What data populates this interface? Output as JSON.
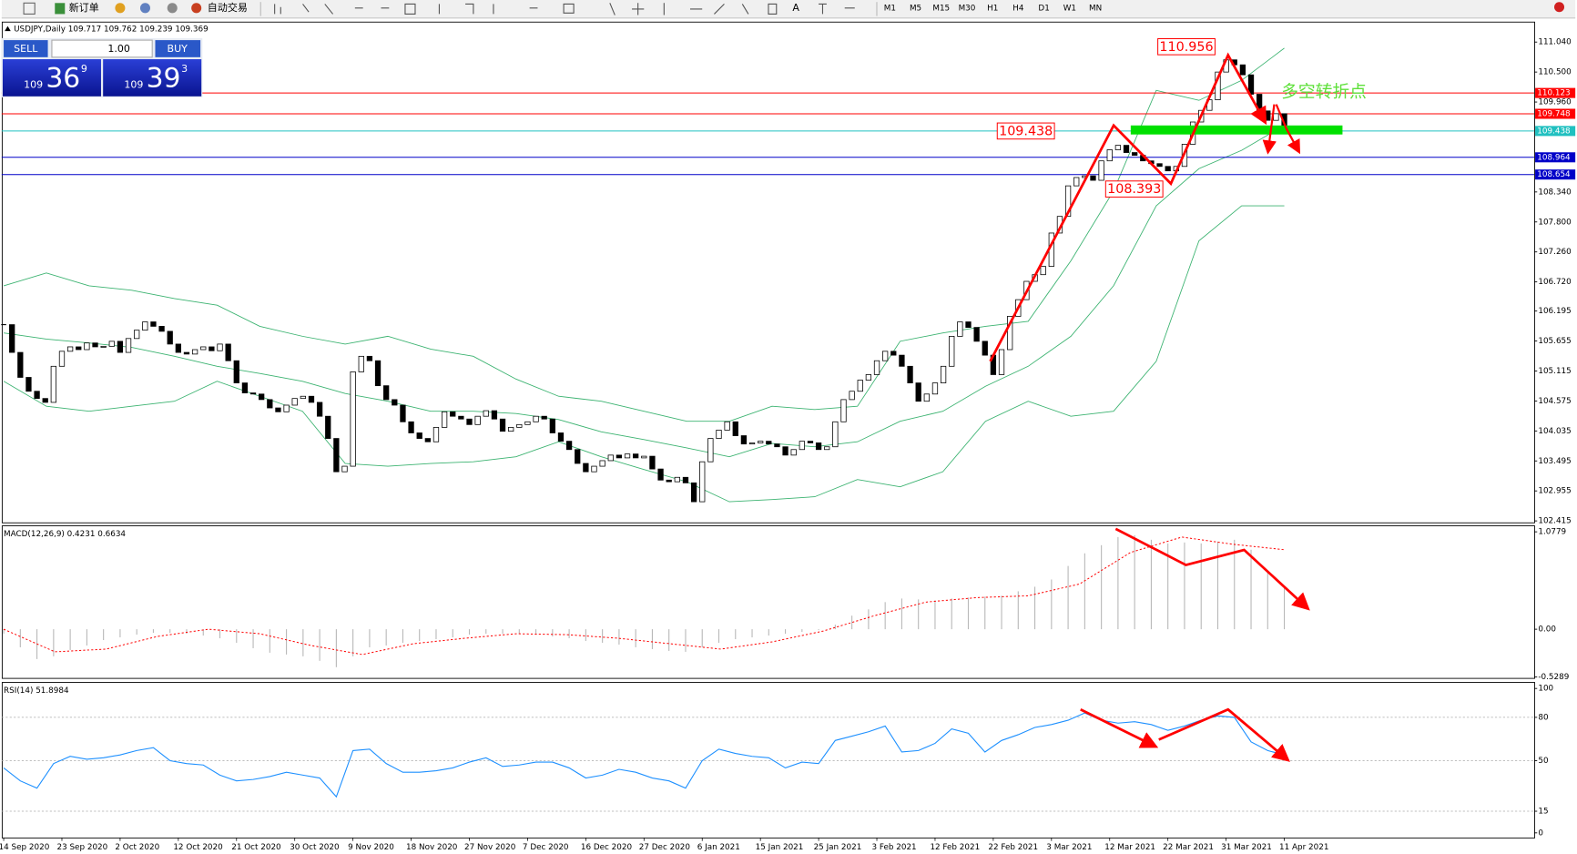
{
  "toolbar": {
    "new_order": "新订单",
    "auto_trading": "自动交易",
    "timeframes": [
      "M1",
      "M5",
      "M15",
      "M30",
      "H1",
      "H4",
      "D1",
      "W1",
      "MN"
    ]
  },
  "trade_panel": {
    "sell": "SELL",
    "buy": "BUY",
    "lots": "1.00",
    "bid": [
      "109",
      "36",
      "9"
    ],
    "ask": [
      "109",
      "39",
      "3"
    ]
  },
  "chart_data": [
    {
      "type": "candlestick",
      "title": "USDJPY,Daily 109.717 109.762 109.239 109.369",
      "x_labels": [
        "14 Sep 2020",
        "23 Sep 2020",
        "2 Oct 2020",
        "12 Oct 2020",
        "21 Oct 2020",
        "30 Oct 2020",
        "9 Nov 2020",
        "18 Nov 2020",
        "27 Nov 2020",
        "7 Dec 2020",
        "16 Dec 2020",
        "27 Dec 2020",
        "6 Jan 2021",
        "15 Jan 2021",
        "25 Jan 2021",
        "3 Feb 2021",
        "12 Feb 2021",
        "22 Feb 2021",
        "3 Mar 2021",
        "12 Mar 2021",
        "22 Mar 2021",
        "31 Mar 2021",
        "11 Apr 2021"
      ],
      "values": [
        105.95,
        105.45,
        105.0,
        104.75,
        104.62,
        104.55,
        105.2,
        105.47,
        105.55,
        105.5,
        105.62,
        105.55,
        105.56,
        105.65,
        105.45,
        105.7,
        105.85,
        106.0,
        105.92,
        105.83,
        105.6,
        105.45,
        105.42,
        105.5,
        105.55,
        105.48,
        105.6,
        105.3,
        104.9,
        104.72,
        104.7,
        104.6,
        104.45,
        104.38,
        104.5,
        104.62,
        104.66,
        104.55,
        104.3,
        103.9,
        103.3,
        103.4,
        105.1,
        105.38,
        105.3,
        104.85,
        104.6,
        104.5,
        104.2,
        104.0,
        103.9,
        103.84,
        104.1,
        104.38,
        104.3,
        104.25,
        104.15,
        104.3,
        104.4,
        104.25,
        104.03,
        104.1,
        104.15,
        104.2,
        104.3,
        104.25,
        104.0,
        103.85,
        103.7,
        103.45,
        103.3,
        103.4,
        103.5,
        103.6,
        103.55,
        103.62,
        103.55,
        103.58,
        103.35,
        103.15,
        103.12,
        103.2,
        103.1,
        102.76,
        103.48,
        103.9,
        104.05,
        104.2,
        103.95,
        103.8,
        103.82,
        103.85,
        103.8,
        103.75,
        103.6,
        103.7,
        103.85,
        103.82,
        103.7,
        103.75,
        104.2,
        104.6,
        104.75,
        104.95,
        105.05,
        105.3,
        105.47,
        105.4,
        105.2,
        104.9,
        104.57,
        104.7,
        104.9,
        105.2,
        105.74,
        106.0,
        105.9,
        105.65,
        105.4,
        105.05,
        105.5,
        106.1,
        106.4,
        106.73,
        106.85,
        107.0,
        107.6,
        107.9,
        108.45,
        108.6,
        108.63,
        108.55,
        108.9,
        109.1,
        109.18,
        109.05,
        109.0,
        108.9,
        108.85,
        108.8,
        108.72,
        108.8,
        109.2,
        109.6,
        109.81,
        110.0,
        110.5,
        110.72,
        110.63,
        110.45,
        110.1,
        109.8,
        109.63,
        109.75,
        109.54
      ],
      "bands": {
        "color": "#3cb371",
        "upper": [
          106.65,
          106.88,
          106.65,
          106.57,
          106.42,
          106.3,
          105.92,
          105.74,
          105.6,
          105.74,
          105.51,
          105.38,
          104.97,
          104.66,
          104.57,
          104.39,
          104.21,
          104.21,
          104.48,
          104.42,
          104.48,
          105.65,
          105.8,
          105.92,
          106.01,
          107.1,
          108.36,
          110.17,
          109.99,
          110.35,
          110.93
        ],
        "middle": [
          105.8,
          105.69,
          105.62,
          105.54,
          105.38,
          105.2,
          105.07,
          104.93,
          104.71,
          104.57,
          104.39,
          104.39,
          104.35,
          104.24,
          104.02,
          103.88,
          103.73,
          103.57,
          103.81,
          103.75,
          103.84,
          104.21,
          104.39,
          104.84,
          105.2,
          105.74,
          106.65,
          108.09,
          108.76,
          109.09,
          109.54
        ],
        "lower": [
          104.93,
          104.48,
          104.39,
          104.48,
          104.57,
          104.93,
          104.66,
          104.39,
          103.45,
          103.4,
          103.45,
          103.48,
          103.57,
          103.84,
          103.57,
          103.34,
          103.12,
          102.76,
          102.8,
          102.85,
          103.16,
          103.03,
          103.3,
          104.21,
          104.57,
          104.3,
          104.39,
          105.29,
          107.46,
          108.09,
          108.09
        ]
      },
      "ylim": [
        102.38,
        111.4
      ],
      "yticks": [
        {
          "value": 111.04,
          "label": "111.040"
        },
        {
          "value": 110.5,
          "label": "110.500"
        },
        {
          "value": 109.96,
          "label": "109.960"
        },
        {
          "value": 108.34,
          "label": "108.340"
        },
        {
          "value": 107.8,
          "label": "107.800"
        },
        {
          "value": 107.26,
          "label": "107.260"
        },
        {
          "value": 106.72,
          "label": "106.720"
        },
        {
          "value": 106.195,
          "label": "106.195"
        },
        {
          "value": 105.655,
          "label": "105.655"
        },
        {
          "value": 105.115,
          "label": "105.115"
        },
        {
          "value": 104.575,
          "label": "104.575"
        },
        {
          "value": 104.035,
          "label": "104.035"
        },
        {
          "value": 103.495,
          "label": "103.495"
        },
        {
          "value": 102.955,
          "label": "102.955"
        },
        {
          "value": 102.415,
          "label": "102.415"
        }
      ],
      "levels": [
        {
          "value": 110.123,
          "color": "#ff0000"
        },
        {
          "value": 109.748,
          "color": "#ff0000"
        },
        {
          "value": 109.438,
          "color": "#20c0c0"
        },
        {
          "value": 108.964,
          "color": "#0000c8"
        },
        {
          "value": 108.654,
          "color": "#0000c8"
        }
      ],
      "annotations": [
        110.956,
        109.438,
        108.393
      ],
      "note": "多空转折点"
    },
    {
      "type": "macd",
      "title": "MACD(12,26,9) 0.4231 0.6634",
      "histogram": {
        "color": "#b8b8b8",
        "values": [
          -0.05,
          -0.2,
          -0.33,
          -0.3,
          -0.23,
          -0.18,
          -0.12,
          -0.09,
          -0.06,
          -0.04,
          -0.04,
          -0.05,
          -0.07,
          -0.1,
          -0.15,
          -0.21,
          -0.26,
          -0.28,
          -0.3,
          -0.35,
          -0.42,
          -0.3,
          -0.2,
          -0.18,
          -0.15,
          -0.13,
          -0.11,
          -0.09,
          -0.06,
          -0.05,
          -0.05,
          -0.05,
          -0.06,
          -0.08,
          -0.1,
          -0.13,
          -0.15,
          -0.17,
          -0.2,
          -0.22,
          -0.24,
          -0.25,
          -0.2,
          -0.15,
          -0.11,
          -0.09,
          -0.07,
          -0.05,
          -0.03,
          -0.01,
          0.05,
          0.15,
          0.22,
          0.3,
          0.34,
          0.33,
          0.32,
          0.34,
          0.35,
          0.36,
          0.37,
          0.42,
          0.47,
          0.55,
          0.7,
          0.84,
          0.93,
          1.02,
          1.04,
          0.99,
          0.95,
          0.96,
          0.95,
          0.97,
          0.99,
          0.88,
          0.65,
          0.48
        ]
      },
      "signal": {
        "color": "#ff0000",
        "values": [
          0.0,
          -0.25,
          -0.22,
          -0.08,
          0.0,
          -0.05,
          -0.18,
          -0.28,
          -0.16,
          -0.1,
          -0.05,
          -0.06,
          -0.1,
          -0.16,
          -0.22,
          -0.14,
          -0.02,
          0.15,
          0.3,
          0.35,
          0.37,
          0.5,
          0.85,
          1.02,
          0.94,
          0.88
        ]
      },
      "ylim": [
        -0.544,
        1.144
      ],
      "yticks": [
        1.0779,
        {
          "value": 0,
          "label": "0.00"
        },
        -0.5289
      ]
    },
    {
      "type": "line",
      "title": "RSI(14) 51.8984",
      "color": "#1e90ff",
      "values": [
        45,
        36,
        31,
        48,
        53,
        51,
        52,
        54,
        57,
        59,
        50,
        48,
        47,
        40,
        36,
        37,
        39,
        42,
        40,
        38,
        25,
        57,
        58,
        48,
        42,
        42,
        43,
        45,
        49,
        52,
        46,
        47,
        49,
        49,
        45,
        38,
        40,
        44,
        42,
        38,
        36,
        31,
        50,
        58,
        55,
        53,
        52,
        45,
        49,
        48,
        64,
        67,
        70,
        74,
        56,
        57,
        62,
        72,
        69,
        56,
        64,
        68,
        73,
        75,
        78,
        83,
        78,
        76,
        77,
        75,
        71,
        74,
        78,
        81,
        80,
        63,
        57,
        54
      ],
      "ylim": [
        -3.5,
        104.2
      ],
      "yticks": [
        0,
        15,
        50,
        80,
        100
      ]
    }
  ]
}
